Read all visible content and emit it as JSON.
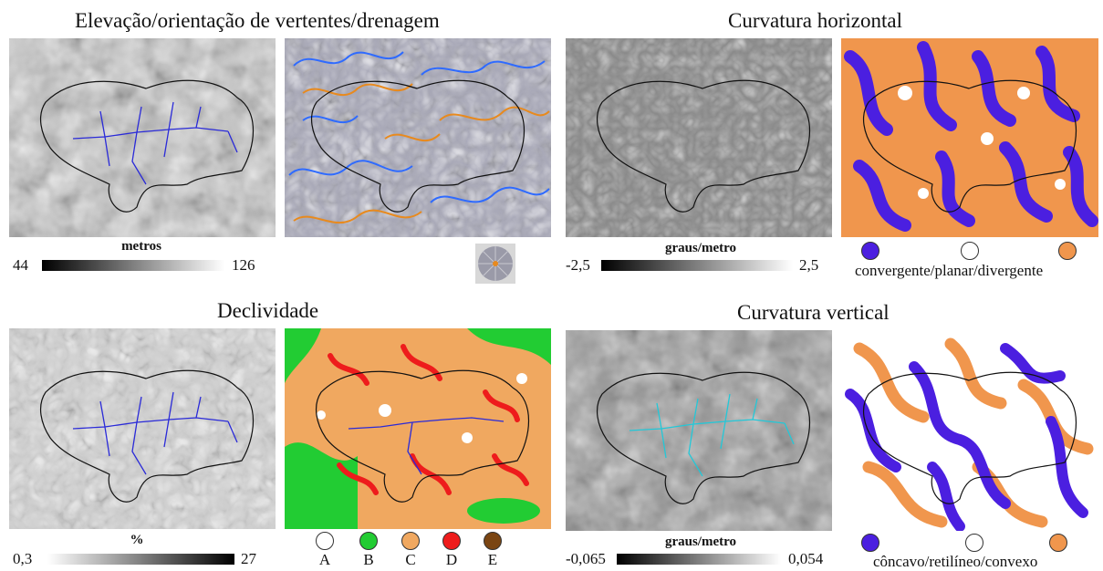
{
  "colors": {
    "drainage": "#2a2ad8",
    "drainage_cyan": "#22c8d8",
    "aspect_blue": "#2f6bff",
    "aspect_orange": "#e88a1e",
    "convergent": "#4b1fe0",
    "planar": "#ffffff",
    "divergent": "#f0964d",
    "concave": "#4b1fe0",
    "convex": "#f0964d",
    "slope_A": "#ffffff",
    "slope_B": "#22cc33",
    "slope_C": "#f0a860",
    "slope_D": "#ee1c1c",
    "slope_E": "#7a4512"
  },
  "panels": {
    "elevation": {
      "title": "Elevação/orientação de vertentes/drenagem",
      "unit": "metros",
      "min": "44",
      "max": "126"
    },
    "h_curvature": {
      "title": "Curvatura horizontal",
      "unit": "graus/metro",
      "min": "-2,5",
      "max": "2,5",
      "legend_text": "convergente/planar/divergente"
    },
    "slope": {
      "title": "Declividade",
      "unit": "%",
      "min": "0,3",
      "max": "27",
      "classes": [
        "A",
        "B",
        "C",
        "D",
        "E"
      ]
    },
    "v_curvature": {
      "title": "Curvatura vertical",
      "unit": "graus/metro",
      "min": "-0,065",
      "max": "0,054",
      "legend_text": "côncavo/retilíneo/convexo"
    }
  },
  "icons": {
    "aspect_wheel": "aspect-compass-icon"
  }
}
